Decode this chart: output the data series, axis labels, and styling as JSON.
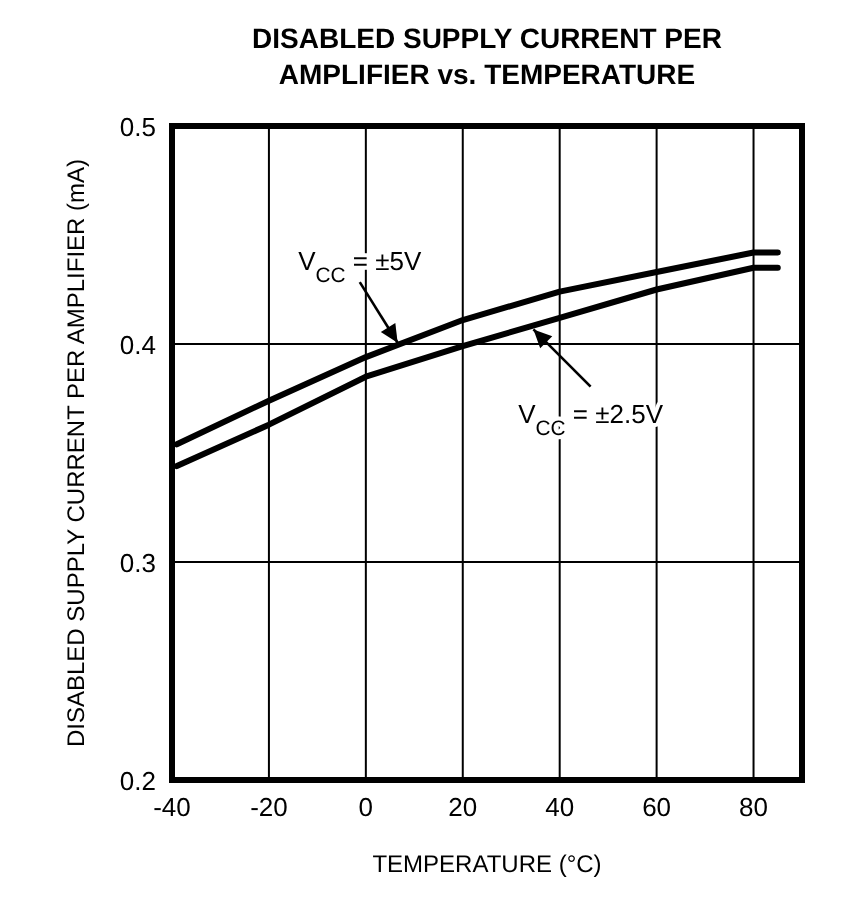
{
  "chart_data": {
    "type": "line",
    "title": "DISABLED SUPPLY CURRENT PER AMPLIFIER vs. TEMPERATURE",
    "xlabel": "TEMPERATURE (°C)",
    "ylabel": "DISABLED SUPPLY CURRENT PER AMPLIFIER (mA)",
    "x": [
      -39,
      -20,
      0,
      20,
      40,
      60,
      80,
      85
    ],
    "series": [
      {
        "color": "#000000",
        "values": [
          0.354,
          0.374,
          0.394,
          0.411,
          0.424,
          0.433,
          0.442,
          0.442
        ]
      },
      {
        "color": "#000000",
        "values": [
          0.344,
          0.363,
          0.385,
          0.399,
          0.412,
          0.425,
          0.435,
          0.435
        ]
      }
    ],
    "xlim": [
      -40,
      90
    ],
    "xticks": [
      -40,
      -20,
      0,
      20,
      40,
      60,
      80
    ],
    "ylim": [
      0.2,
      0.5
    ],
    "yticks": [
      0.2,
      0.3,
      0.4,
      0.5
    ],
    "grid": true,
    "line_style": "solid",
    "annotations": [
      {
        "text": "V$_{CC}$ = ±5V",
        "x": 7,
        "y": 0.399
      },
      {
        "text": "V$_{CC}$ = ±2.5V",
        "x": 34,
        "y": 0.408
      }
    ]
  }
}
